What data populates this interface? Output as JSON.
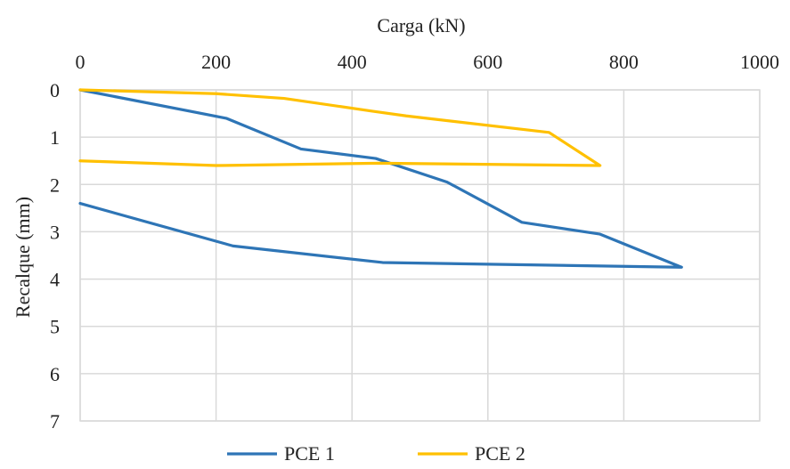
{
  "chart_data": {
    "type": "line",
    "title": "",
    "xlabel": "Carga (kN)",
    "ylabel": "Recalque (mm)",
    "xlim": [
      0,
      1000
    ],
    "ylim": [
      0,
      7
    ],
    "y_inverted": true,
    "x_axis_position": "top",
    "x_ticks": [
      0,
      200,
      400,
      600,
      800,
      1000
    ],
    "x_tick_labels": [
      "0",
      "200",
      "400",
      "600",
      "800",
      "1000"
    ],
    "y_ticks": [
      0,
      1,
      2,
      3,
      4,
      5,
      6,
      7
    ],
    "y_tick_labels": [
      "0",
      "1",
      "2",
      "3",
      "4",
      "5",
      "6",
      "7"
    ],
    "grid": true,
    "legend_position": "bottom",
    "series": [
      {
        "name": "PCE 1",
        "color": "#2E75B6",
        "points": [
          [
            0,
            0
          ],
          [
            215,
            0.6
          ],
          [
            325,
            1.25
          ],
          [
            435,
            1.45
          ],
          [
            540,
            1.95
          ],
          [
            650,
            2.8
          ],
          [
            765,
            3.05
          ],
          [
            885,
            3.75
          ],
          [
            445,
            3.65
          ],
          [
            225,
            3.3
          ],
          [
            0,
            2.4
          ]
        ]
      },
      {
        "name": "PCE 2",
        "color": "#FFC000",
        "points": [
          [
            0,
            0
          ],
          [
            200,
            0.08
          ],
          [
            300,
            0.18
          ],
          [
            430,
            0.45
          ],
          [
            480,
            0.55
          ],
          [
            690,
            0.9
          ],
          [
            765,
            1.6
          ],
          [
            440,
            1.55
          ],
          [
            200,
            1.6
          ],
          [
            0,
            1.5
          ]
        ]
      }
    ]
  }
}
